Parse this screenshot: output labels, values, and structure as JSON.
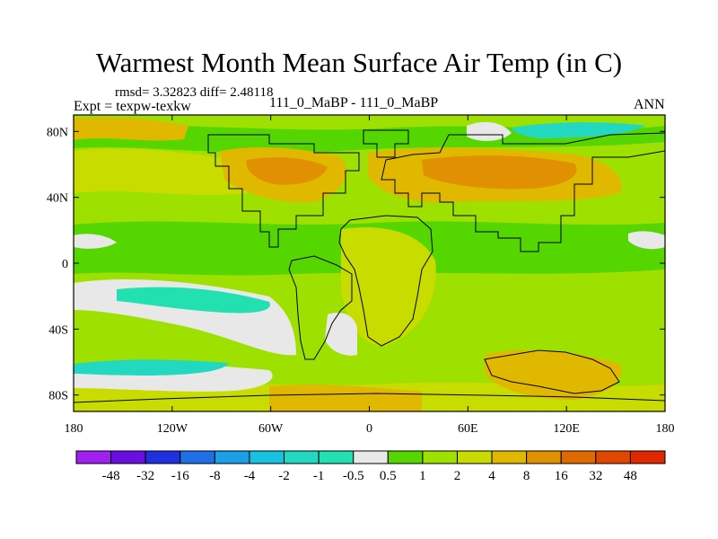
{
  "chart_data": {
    "type": "heatmap",
    "title": "Warmest Month Mean Surface Air Temp (in C)",
    "stats_text": "rmsd= 3.32823 diff= 2.48118",
    "experiment_text": "Expt = texpw-texkw",
    "case_text": "111_0_MaBP - 111_0_MaBP",
    "season": "ANN",
    "x_axis": {
      "range": [
        -180,
        180
      ],
      "ticks": [
        "180",
        "120W",
        "60W",
        "0",
        "60E",
        "120E",
        "180"
      ]
    },
    "y_axis": {
      "range": [
        -90,
        90
      ],
      "ticks": [
        "80N",
        "40N",
        "0",
        "40S",
        "80S"
      ]
    },
    "colorbar": {
      "levels": [
        "-48",
        "-32",
        "-16",
        "-8",
        "-4",
        "-2",
        "-1",
        "-0.5",
        "0.5",
        "1",
        "2",
        "4",
        "8",
        "16",
        "32",
        "48"
      ],
      "colors": [
        "#a020f0",
        "#6a0fe0",
        "#2030e0",
        "#1f6fe6",
        "#1a9fe8",
        "#19c1e0",
        "#22d8c0",
        "#22e0b0",
        "#e8e8e8",
        "#55d600",
        "#9ee000",
        "#c8dc00",
        "#e0b800",
        "#e09000",
        "#e06a00",
        "#e04800",
        "#e02800"
      ]
    },
    "field_summary": "Difference field mostly 1 to 8 C; largest positive (8 to 16) over northern continents near 50N; slightly negative (-0.5 to -2) over southern Pacific near 30S-60S and in the Arctic"
  }
}
